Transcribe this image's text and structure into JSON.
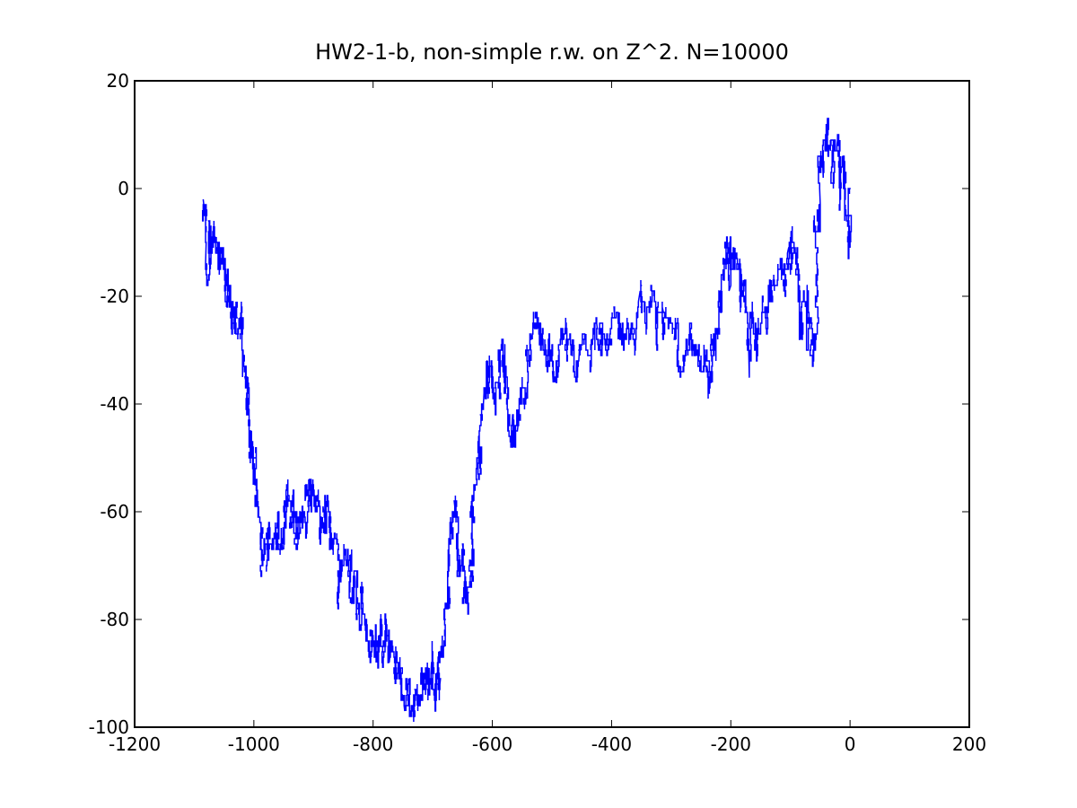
{
  "chart_data": {
    "type": "line",
    "title": "HW2-1-b, non-simple r.w. on Z^2. N=10000",
    "xlabel": "",
    "ylabel": "",
    "xlim": [
      -1200,
      200
    ],
    "ylim": [
      -100,
      20
    ],
    "x_ticks": [
      -1200,
      -1000,
      -800,
      -600,
      -400,
      -200,
      0,
      200
    ],
    "x_tick_labels": [
      "-1200",
      "-1000",
      "-800",
      "-600",
      "-400",
      "-200",
      "0",
      "200"
    ],
    "y_ticks": [
      -100,
      -80,
      -60,
      -40,
      -20,
      0,
      20
    ],
    "y_tick_labels": [
      "-100",
      "-80",
      "-60",
      "-40",
      "-20",
      "0",
      "20"
    ],
    "grid": false,
    "line_color": "#0000ff",
    "steps": 10000,
    "path_waypoints": [
      [
        0,
        0
      ],
      [
        -2,
        -5
      ],
      [
        -5,
        -6
      ],
      [
        -8,
        2
      ],
      [
        -12,
        5
      ],
      [
        -15,
        0
      ],
      [
        -18,
        5
      ],
      [
        -22,
        8
      ],
      [
        -28,
        3
      ],
      [
        -35,
        8
      ],
      [
        -40,
        10
      ],
      [
        -45,
        2
      ],
      [
        -48,
        6
      ],
      [
        -50,
        -3
      ],
      [
        -52,
        -6
      ],
      [
        -55,
        -12
      ],
      [
        -58,
        -22
      ],
      [
        -60,
        -28
      ],
      [
        -64,
        -25
      ],
      [
        -70,
        -27
      ],
      [
        -75,
        -22
      ],
      [
        -80,
        -27
      ],
      [
        -85,
        -25
      ],
      [
        -88,
        -15
      ],
      [
        -92,
        -12
      ],
      [
        -98,
        -15
      ],
      [
        -105,
        -12
      ],
      [
        -112,
        -18
      ],
      [
        -120,
        -15
      ],
      [
        -130,
        -20
      ],
      [
        -140,
        -22
      ],
      [
        -150,
        -25
      ],
      [
        -155,
        -30
      ],
      [
        -160,
        -28
      ],
      [
        -165,
        -24
      ],
      [
        -170,
        -30
      ],
      [
        -175,
        -22
      ],
      [
        -180,
        -18
      ],
      [
        -185,
        -15
      ],
      [
        -190,
        -12
      ],
      [
        -195,
        -14
      ],
      [
        -200,
        -18
      ],
      [
        -205,
        -10
      ],
      [
        -210,
        -14
      ],
      [
        -215,
        -20
      ],
      [
        -220,
        -25
      ],
      [
        -225,
        -28
      ],
      [
        -230,
        -30
      ],
      [
        -235,
        -35
      ],
      [
        -240,
        -33
      ],
      [
        -245,
        -30
      ],
      [
        -255,
        -32
      ],
      [
        -265,
        -30
      ],
      [
        -275,
        -28
      ],
      [
        -285,
        -33
      ],
      [
        -295,
        -28
      ],
      [
        -305,
        -24
      ],
      [
        -315,
        -22
      ],
      [
        -325,
        -26
      ],
      [
        -335,
        -20
      ],
      [
        -345,
        -23
      ],
      [
        -355,
        -21
      ],
      [
        -365,
        -26
      ],
      [
        -375,
        -28
      ],
      [
        -385,
        -26
      ],
      [
        -395,
        -24
      ],
      [
        -405,
        -30
      ],
      [
        -415,
        -28
      ],
      [
        -425,
        -25
      ],
      [
        -435,
        -30
      ],
      [
        -445,
        -28
      ],
      [
        -455,
        -32
      ],
      [
        -465,
        -29
      ],
      [
        -475,
        -32
      ],
      [
        -485,
        -28
      ],
      [
        -492,
        -34
      ],
      [
        -498,
        -36
      ],
      [
        -505,
        -33
      ],
      [
        -512,
        -30
      ],
      [
        -520,
        -25
      ],
      [
        -528,
        -23
      ],
      [
        -535,
        -28
      ],
      [
        -540,
        -35
      ],
      [
        -545,
        -40
      ],
      [
        -552,
        -38
      ],
      [
        -558,
        -45
      ],
      [
        -562,
        -48
      ],
      [
        -566,
        -42
      ],
      [
        -570,
        -46
      ],
      [
        -575,
        -40
      ],
      [
        -580,
        -37
      ],
      [
        -584,
        -28
      ],
      [
        -588,
        -30
      ],
      [
        -594,
        -38
      ],
      [
        -600,
        -35
      ],
      [
        -605,
        -38
      ],
      [
        -610,
        -33
      ],
      [
        -615,
        -40
      ],
      [
        -620,
        -52
      ],
      [
        -623,
        -48
      ],
      [
        -627,
        -55
      ],
      [
        -630,
        -62
      ],
      [
        -633,
        -67
      ],
      [
        -637,
        -72
      ],
      [
        -641,
        -76
      ],
      [
        -645,
        -72
      ],
      [
        -650,
        -66
      ],
      [
        -655,
        -70
      ],
      [
        -660,
        -65
      ],
      [
        -664,
        -58
      ],
      [
        -668,
        -63
      ],
      [
        -672,
        -70
      ],
      [
        -675,
        -75
      ],
      [
        -680,
        -80
      ],
      [
        -684,
        -85
      ],
      [
        -688,
        -92
      ],
      [
        -692,
        -88
      ],
      [
        -697,
        -93
      ],
      [
        -702,
        -88
      ],
      [
        -707,
        -93
      ],
      [
        -712,
        -90
      ],
      [
        -718,
        -92
      ],
      [
        -723,
        -95
      ],
      [
        -728,
        -93
      ],
      [
        -733,
        -96
      ],
      [
        -738,
        -98
      ],
      [
        -743,
        -94
      ],
      [
        -748,
        -96
      ],
      [
        -753,
        -91
      ],
      [
        -757,
        -88
      ],
      [
        -762,
        -90
      ],
      [
        -767,
        -85
      ],
      [
        -772,
        -87
      ],
      [
        -777,
        -82
      ],
      [
        -782,
        -85
      ],
      [
        -787,
        -80
      ],
      [
        -792,
        -84
      ],
      [
        -797,
        -86
      ],
      [
        -803,
        -82
      ],
      [
        -808,
        -85
      ],
      [
        -813,
        -80
      ],
      [
        -818,
        -76
      ],
      [
        -823,
        -78
      ],
      [
        -828,
        -73
      ],
      [
        -833,
        -75
      ],
      [
        -838,
        -70
      ],
      [
        -843,
        -72
      ],
      [
        -848,
        -67
      ],
      [
        -853,
        -70
      ],
      [
        -858,
        -72
      ],
      [
        -863,
        -65
      ],
      [
        -868,
        -67
      ],
      [
        -873,
        -62
      ],
      [
        -878,
        -64
      ],
      [
        -883,
        -60
      ],
      [
        -888,
        -62
      ],
      [
        -893,
        -58
      ],
      [
        -898,
        -57
      ],
      [
        -903,
        -60
      ],
      [
        -908,
        -55
      ],
      [
        -913,
        -57
      ],
      [
        -918,
        -62
      ],
      [
        -923,
        -64
      ],
      [
        -928,
        -60
      ],
      [
        -933,
        -65
      ],
      [
        -938,
        -62
      ],
      [
        -943,
        -58
      ],
      [
        -948,
        -62
      ],
      [
        -953,
        -66
      ],
      [
        -958,
        -63
      ],
      [
        -963,
        -67
      ],
      [
        -968,
        -66
      ],
      [
        -973,
        -65
      ],
      [
        -978,
        -70
      ],
      [
        -983,
        -68
      ],
      [
        -988,
        -64
      ],
      [
        -993,
        -60
      ],
      [
        -998,
        -55
      ],
      [
        -1001,
        -50
      ],
      [
        -1004,
        -48
      ],
      [
        -1008,
        -44
      ],
      [
        -1012,
        -40
      ],
      [
        -1015,
        -35
      ],
      [
        -1018,
        -32
      ],
      [
        -1021,
        -27
      ],
      [
        -1024,
        -24
      ],
      [
        -1028,
        -22
      ],
      [
        -1032,
        -26
      ],
      [
        -1036,
        -23
      ],
      [
        -1040,
        -20
      ],
      [
        -1044,
        -17
      ],
      [
        -1048,
        -14
      ],
      [
        -1052,
        -12
      ],
      [
        -1056,
        -14
      ],
      [
        -1060,
        -10
      ],
      [
        -1064,
        -12
      ],
      [
        -1068,
        -9
      ],
      [
        -1072,
        -11
      ],
      [
        -1076,
        -8
      ],
      [
        -1080,
        -10
      ],
      [
        -1083,
        -5
      ],
      [
        -1085,
        -2
      ]
    ]
  }
}
